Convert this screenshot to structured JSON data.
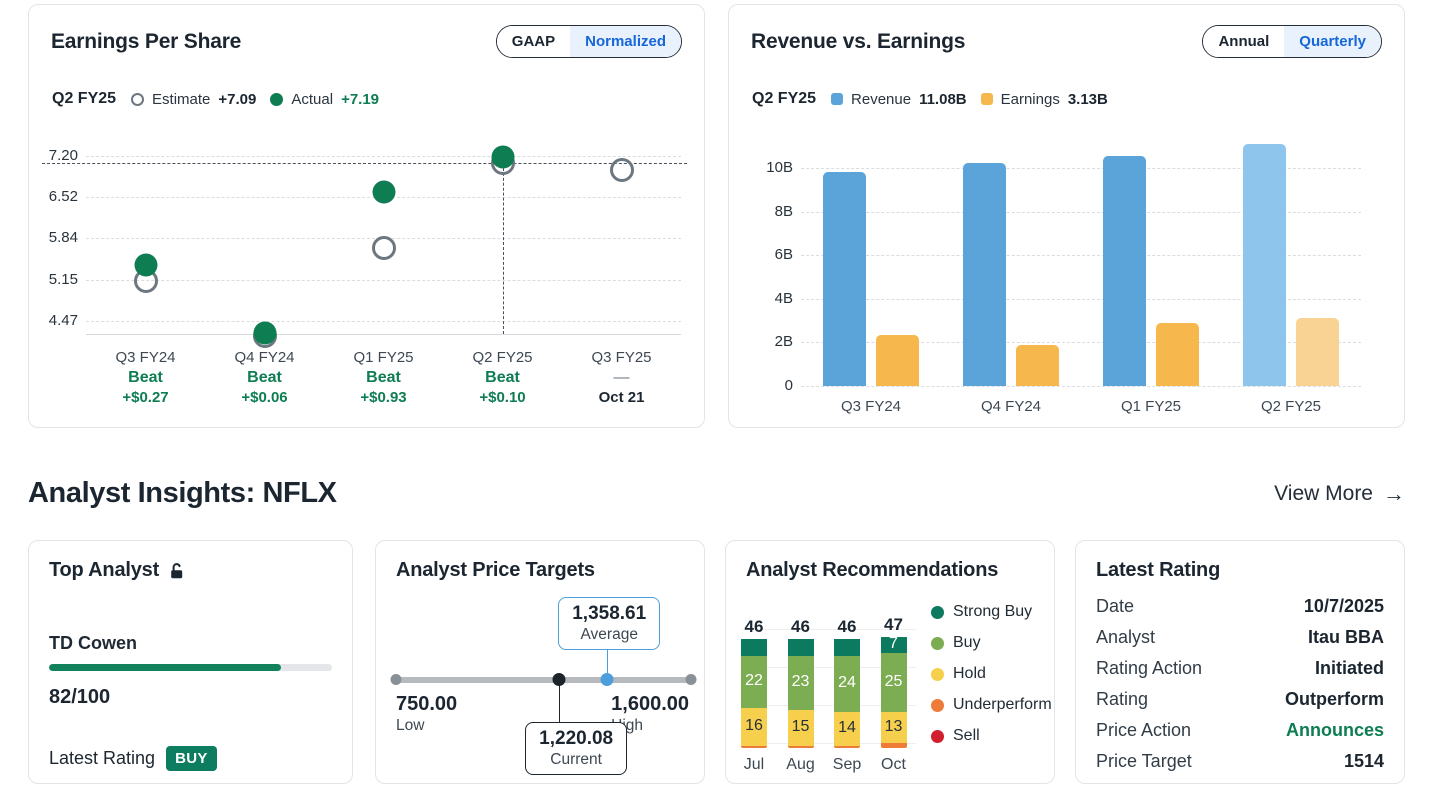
{
  "colors": {
    "accent_blue": "#1667d9",
    "green": "#0e7d52",
    "badge_green": "#0c7d5e",
    "toggle_selected_bg": "#e9f1fc"
  },
  "eps_card": {
    "title": "Earnings Per Share",
    "toggle": {
      "options": [
        "GAAP",
        "Normalized"
      ],
      "selected": "Normalized"
    },
    "legend": {
      "period": "Q2 FY25",
      "estimate_label": "Estimate",
      "estimate_value": "+7.09",
      "actual_label": "Actual",
      "actual_value": "+7.19"
    }
  },
  "revenue_card": {
    "title": "Revenue vs. Earnings",
    "toggle": {
      "options": [
        "Annual",
        "Quarterly"
      ],
      "selected": "Quarterly"
    },
    "legend": {
      "period": "Q2 FY25",
      "revenue_label": "Revenue",
      "revenue_value": "11.08B",
      "earnings_label": "Earnings",
      "earnings_value": "3.13B"
    }
  },
  "insights": {
    "title": "Analyst Insights: NFLX",
    "view_more": "View More",
    "arrow": "→"
  },
  "top_analyst": {
    "title": "Top Analyst",
    "name": "TD Cowen",
    "score": "82/100",
    "score_pct": 82,
    "latest_rating_label": "Latest Rating",
    "rating_badge": "BUY"
  },
  "price_targets": {
    "title": "Analyst Price Targets",
    "low": {
      "value": "750.00",
      "label": "Low",
      "num": 750
    },
    "high": {
      "value": "1,600.00",
      "label": "High",
      "num": 1600
    },
    "average": {
      "value": "1,358.61",
      "label": "Average",
      "num": 1358.61
    },
    "current": {
      "value": "1,220.08",
      "label": "Current",
      "num": 1220.08
    }
  },
  "recommendations": {
    "title": "Analyst Recommendations",
    "legend": [
      {
        "label": "Strong Buy",
        "color": "#0c7a5e"
      },
      {
        "label": "Buy",
        "color": "#7dad53"
      },
      {
        "label": "Hold",
        "color": "#f6d04d"
      },
      {
        "label": "Underperform",
        "color": "#ee7c38"
      },
      {
        "label": "Sell",
        "color": "#d11f2f"
      }
    ]
  },
  "latest_rating": {
    "title": "Latest Rating",
    "rows": [
      {
        "label": "Date",
        "value": "10/7/2025"
      },
      {
        "label": "Analyst",
        "value": "Itau BBA"
      },
      {
        "label": "Rating Action",
        "value": "Initiated"
      },
      {
        "label": "Rating",
        "value": "Outperform"
      },
      {
        "label": "Price Action",
        "value": "Announces",
        "accent": true
      },
      {
        "label": "Price Target",
        "value": "1514"
      }
    ]
  },
  "chart_data": [
    {
      "id": "eps",
      "type": "scatter",
      "title": "Earnings Per Share (Normalized)",
      "categories": [
        "Q3 FY24",
        "Q4 FY24",
        "Q1 FY25",
        "Q2 FY25",
        "Q3 FY25"
      ],
      "series": [
        {
          "name": "Estimate",
          "values": [
            5.13,
            4.21,
            5.68,
            7.09,
            6.97
          ]
        },
        {
          "name": "Actual",
          "values": [
            5.4,
            4.27,
            6.61,
            7.19,
            null
          ]
        }
      ],
      "yticks": [
        7.2,
        6.52,
        5.84,
        5.15,
        4.47
      ],
      "ylim": [
        4.25,
        7.25
      ],
      "reference_value": 7.09,
      "highlight_category": "Q2 FY25",
      "grid": "dashed",
      "annotations": [
        {
          "category": "Q3 FY24",
          "result": "Beat",
          "detail": "+$0.27"
        },
        {
          "category": "Q4 FY24",
          "result": "Beat",
          "detail": "+$0.06"
        },
        {
          "category": "Q1 FY25",
          "result": "Beat",
          "detail": "+$0.93"
        },
        {
          "category": "Q2 FY25",
          "result": "Beat",
          "detail": "+$0.10"
        },
        {
          "category": "Q3 FY25",
          "result": "—",
          "detail": "Oct 21",
          "pending": true
        }
      ]
    },
    {
      "id": "revenue_vs_earnings",
      "type": "bar",
      "title": "Revenue vs. Earnings (Quarterly)",
      "categories": [
        "Q3 FY24",
        "Q4 FY24",
        "Q1 FY25",
        "Q2 FY25"
      ],
      "series": [
        {
          "name": "Revenue",
          "values": [
            9.83,
            10.25,
            10.54,
            11.08
          ],
          "color": "#5ba4da",
          "highlight_color": "#8dc5ec"
        },
        {
          "name": "Earnings",
          "values": [
            2.36,
            1.87,
            2.89,
            3.13
          ],
          "color": "#f6b84d",
          "highlight_color": "#f9d393"
        }
      ],
      "unit": "B",
      "yticks": [
        0,
        2,
        4,
        6,
        8,
        10
      ],
      "ylim": [
        0,
        11.3
      ],
      "highlight_category": "Q2 FY25",
      "grid": "dashed"
    },
    {
      "id": "analyst_recommendations",
      "type": "stacked-bar",
      "title": "Analyst Recommendations",
      "categories": [
        "Jul",
        "Aug",
        "Sep",
        "Oct"
      ],
      "totals": [
        46,
        46,
        46,
        47
      ],
      "series": [
        {
          "name": "Underperform",
          "color": "#ee7c38",
          "values": [
            1,
            1,
            1,
            2
          ],
          "labels": [
            null,
            null,
            null,
            null
          ],
          "label_color": "#ffffff"
        },
        {
          "name": "Hold",
          "color": "#f6d04d",
          "values": [
            16,
            15,
            14,
            13
          ],
          "labels": [
            "16",
            "15",
            "14",
            "13"
          ],
          "label_color": "#273039"
        },
        {
          "name": "Buy",
          "color": "#7dad53",
          "values": [
            22,
            23,
            24,
            25
          ],
          "labels": [
            "22",
            "23",
            "24",
            "25"
          ],
          "label_color": "#ffffff"
        },
        {
          "name": "Strong Buy",
          "color": "#0c7a5e",
          "values": [
            7,
            7,
            7,
            7
          ],
          "labels": [
            null,
            null,
            null,
            "7"
          ],
          "label_color": "#ffffff"
        },
        {
          "name": "Sell",
          "color": "#d11f2f",
          "values": [
            0,
            0,
            0,
            0
          ],
          "labels": [
            null,
            null,
            null,
            null
          ],
          "label_color": "#ffffff"
        }
      ]
    }
  ]
}
